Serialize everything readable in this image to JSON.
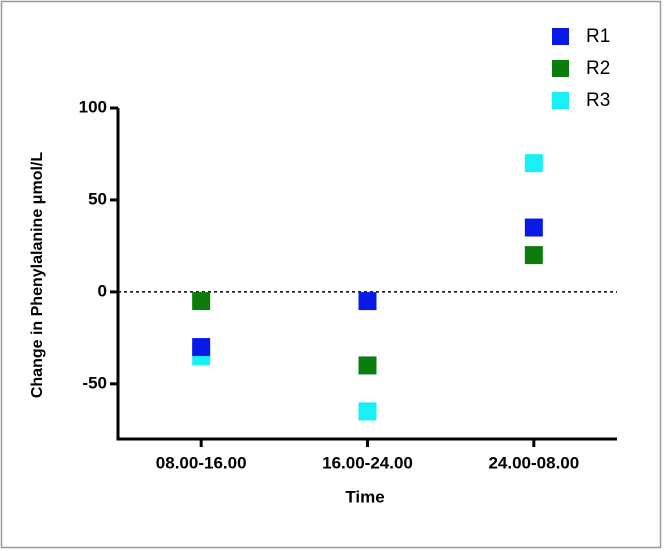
{
  "chart_data": {
    "type": "scatter",
    "x_label": "Time",
    "y_label": "Change in Phenylalanine μmol/L",
    "categories": [
      "08.00-16.00",
      "16.00-24.00",
      "24.00-08.00"
    ],
    "series": [
      {
        "name": "R1",
        "color": "#0a1ae6",
        "values": [
          -30,
          -5,
          35
        ]
      },
      {
        "name": "R2",
        "color": "#0a7d0a",
        "values": [
          -5,
          -40,
          20
        ]
      },
      {
        "name": "R3",
        "color": "#19f0f5",
        "values": [
          -35,
          -65,
          70
        ]
      }
    ],
    "ylim": [
      -80,
      100
    ],
    "yticks": [
      -50,
      0,
      50,
      100
    ],
    "zero_line": true,
    "legend": "top-right"
  }
}
